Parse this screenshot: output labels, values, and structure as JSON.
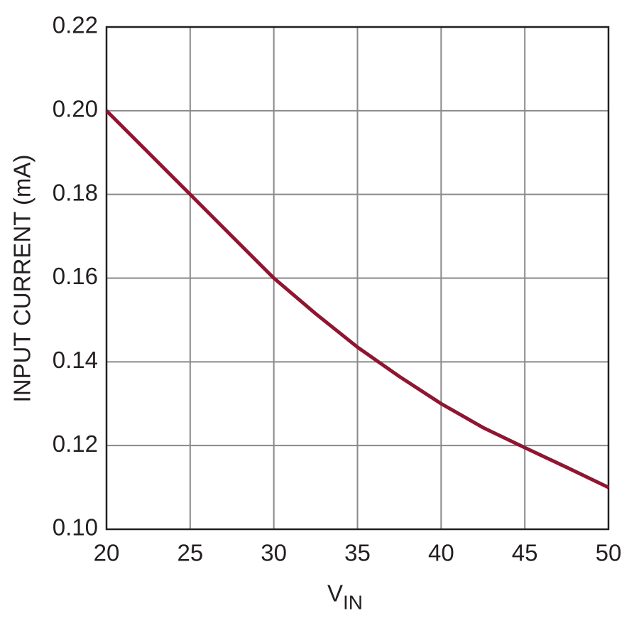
{
  "chart_data": {
    "type": "line",
    "y_label": "INPUT CURRENT (mA)",
    "x_label": "V",
    "x_label_sub": "IN",
    "x": [
      20,
      22.5,
      25,
      27.5,
      30,
      32.5,
      35,
      37.5,
      40,
      42.5,
      45,
      47.5,
      50
    ],
    "series": [
      {
        "color": "#8e1631",
        "values": [
          0.2,
          0.19,
          0.18,
          0.17,
          0.16,
          0.1515,
          0.1435,
          0.1365,
          0.13,
          0.1243,
          0.1195,
          0.1148,
          0.11
        ]
      }
    ],
    "xlim": [
      20,
      50
    ],
    "xticks": [
      20,
      25,
      30,
      35,
      40,
      45,
      50
    ],
    "ylim": [
      0.1,
      0.22
    ],
    "yticks": [
      {
        "value": 0.1,
        "label": "0.10"
      },
      0.12,
      0.14,
      0.16,
      0.18,
      {
        "value": 0.2,
        "label": "0.20"
      },
      0.22
    ],
    "grid": true
  }
}
